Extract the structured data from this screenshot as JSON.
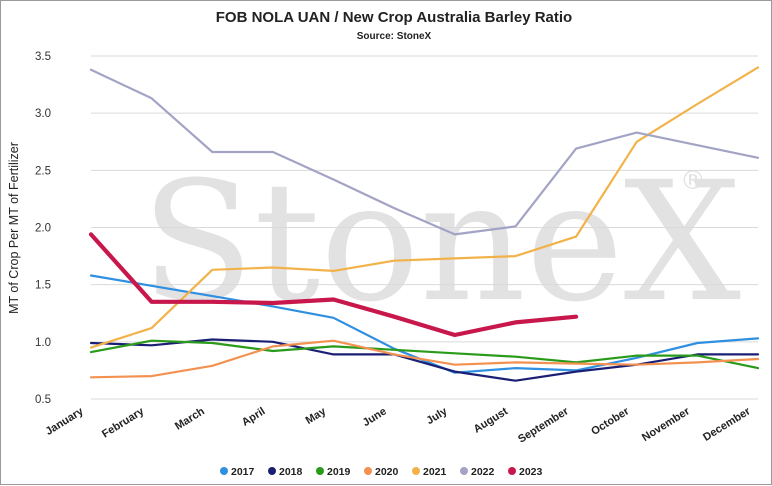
{
  "chart_data": {
    "type": "line",
    "title": "FOB NOLA UAN / New Crop Australia Barley Ratio",
    "subtitle": "Source: StoneX",
    "ylabel": "MT of Crop Per MT of Fertilizer",
    "xlabel": "",
    "watermark": "StoneX",
    "watermark_mark": "®",
    "categories": [
      "January",
      "February",
      "March",
      "April",
      "May",
      "June",
      "July",
      "August",
      "September",
      "October",
      "November",
      "December"
    ],
    "ylim": [
      0.5,
      3.5
    ],
    "yticks": [
      "0.5",
      "1.0",
      "1.5",
      "2.0",
      "2.5",
      "3.0",
      "3.5"
    ],
    "grid": true,
    "legend_position": "bottom",
    "series": [
      {
        "name": "2017",
        "color": "#2f8fe0",
        "width": 2.2,
        "values": [
          1.58,
          1.49,
          1.4,
          1.31,
          1.21,
          0.94,
          0.73,
          0.77,
          0.75,
          0.86,
          0.99,
          1.03
        ]
      },
      {
        "name": "2018",
        "color": "#1b1f73",
        "width": 2.2,
        "values": [
          0.99,
          0.97,
          1.02,
          1.0,
          0.89,
          0.89,
          0.74,
          0.66,
          0.74,
          0.8,
          0.89,
          0.89
        ]
      },
      {
        "name": "2019",
        "color": "#2a9a1a",
        "width": 2.2,
        "values": [
          0.91,
          1.01,
          0.99,
          0.92,
          0.96,
          0.93,
          0.9,
          0.87,
          0.82,
          0.88,
          0.88,
          0.77
        ]
      },
      {
        "name": "2020",
        "color": "#f39150",
        "width": 2.2,
        "values": [
          0.69,
          0.7,
          0.79,
          0.96,
          1.01,
          0.89,
          0.8,
          0.82,
          0.81,
          0.8,
          0.82,
          0.85
        ]
      },
      {
        "name": "2021",
        "color": "#f2b24a",
        "width": 2.2,
        "values": [
          0.95,
          1.12,
          1.63,
          1.65,
          1.62,
          1.71,
          1.73,
          1.75,
          1.92,
          2.75,
          3.08,
          3.4
        ]
      },
      {
        "name": "2022",
        "color": "#a3a3c6",
        "width": 2.2,
        "values": [
          3.38,
          3.13,
          2.66,
          2.66,
          2.42,
          2.17,
          1.94,
          2.01,
          2.69,
          2.83,
          2.72,
          2.61
        ]
      },
      {
        "name": "2023",
        "color": "#c8174b",
        "width": 4.2,
        "values": [
          1.94,
          1.35,
          1.35,
          1.34,
          1.37,
          1.22,
          1.06,
          1.17,
          1.22,
          null,
          null,
          null
        ]
      }
    ]
  }
}
